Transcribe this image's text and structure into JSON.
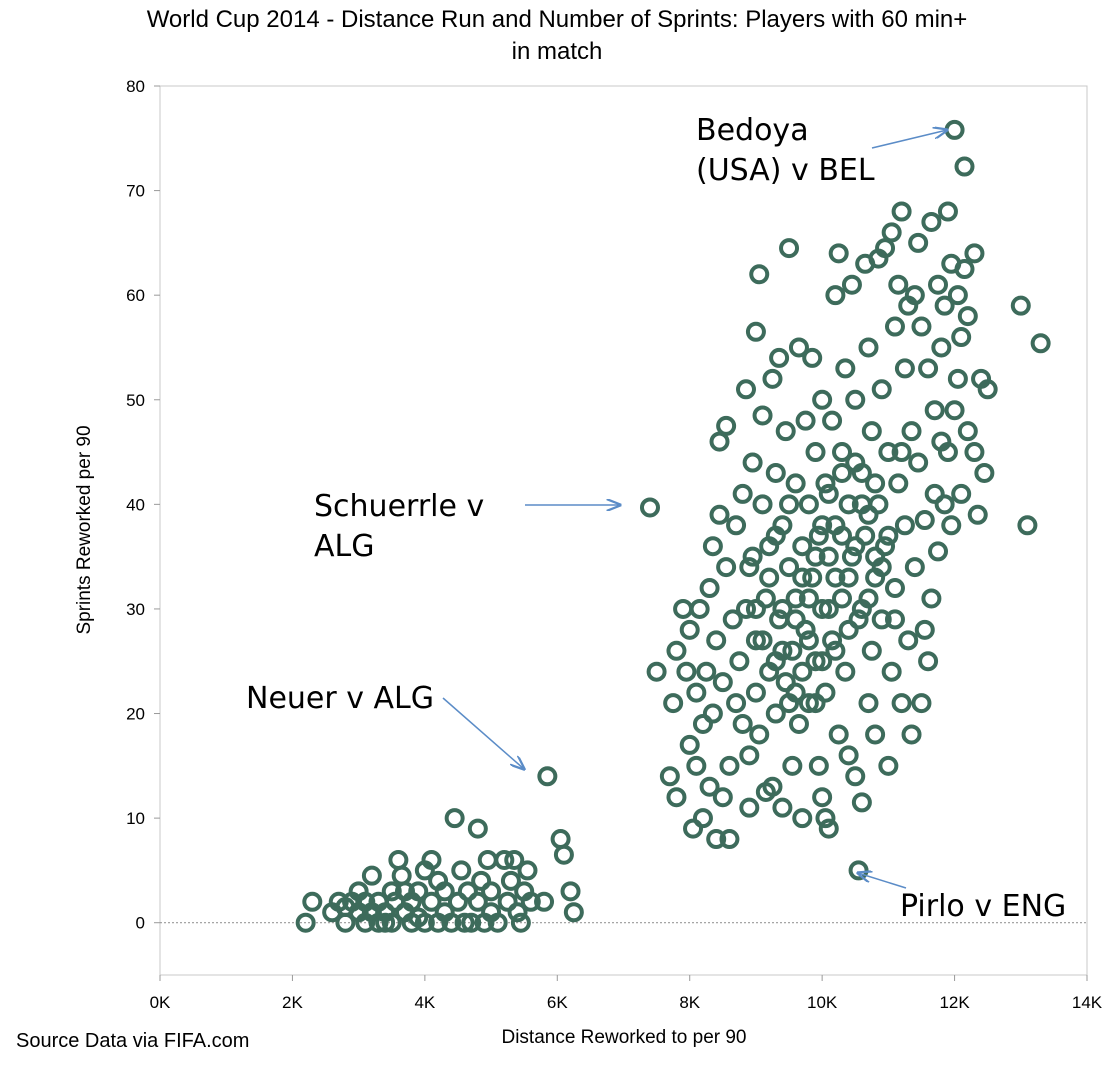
{
  "chart_data": {
    "type": "scatter",
    "title": "World Cup 2014 - Distance Run and Number of Sprints: Players with 60 min+\nin match",
    "xlabel": "Distance Reworked to per 90",
    "ylabel": "Sprints Reworked per 90",
    "xlim": [
      0,
      14000
    ],
    "ylim": [
      -5,
      80
    ],
    "x_ticks": [
      0,
      2000,
      4000,
      6000,
      8000,
      10000,
      12000,
      14000
    ],
    "x_tick_labels": [
      "0K",
      "2K",
      "4K",
      "6K",
      "8K",
      "10K",
      "12K",
      "14K"
    ],
    "y_ticks": [
      0,
      10,
      20,
      30,
      40,
      50,
      60,
      70,
      80
    ],
    "y_tick_labels": [
      "0",
      "10",
      "20",
      "30",
      "40",
      "50",
      "60",
      "70",
      "80"
    ],
    "zero_line": true,
    "grid": false,
    "marker": "open-circle",
    "color": "#3d6b5b",
    "source": "Source Data via FIFA.com",
    "annotations": [
      {
        "text": "Bedoya\n(USA) v BEL",
        "x": 12050,
        "y": 75.8
      },
      {
        "text": "Schuerrle v\nALG",
        "x": 7400,
        "y": 39.7
      },
      {
        "text": "Neuer v ALG",
        "x": 5850,
        "y": 14
      },
      {
        "text": "Pirlo v ENG",
        "x": 10550,
        "y": 5
      }
    ],
    "series": [
      {
        "name": "Players",
        "points": [
          [
            2200,
            0
          ],
          [
            2300,
            2
          ],
          [
            2600,
            1
          ],
          [
            2700,
            2
          ],
          [
            2800,
            0
          ],
          [
            2800,
            1.5
          ],
          [
            2900,
            2
          ],
          [
            3000,
            1
          ],
          [
            3000,
            3
          ],
          [
            3100,
            0
          ],
          [
            3100,
            2
          ],
          [
            3200,
            1
          ],
          [
            3200,
            4.5
          ],
          [
            3300,
            0
          ],
          [
            3300,
            2
          ],
          [
            3400,
            1
          ],
          [
            3400,
            0
          ],
          [
            3500,
            3
          ],
          [
            3500,
            0
          ],
          [
            3550,
            2
          ],
          [
            3600,
            6
          ],
          [
            3650,
            4.5
          ],
          [
            3700,
            1
          ],
          [
            3700,
            3
          ],
          [
            3800,
            0
          ],
          [
            3800,
            2
          ],
          [
            3900,
            0.5
          ],
          [
            3900,
            3
          ],
          [
            4000,
            5
          ],
          [
            4000,
            0
          ],
          [
            4100,
            6
          ],
          [
            4100,
            2
          ],
          [
            4200,
            4
          ],
          [
            4200,
            0
          ],
          [
            4300,
            1
          ],
          [
            4300,
            3
          ],
          [
            4400,
            0
          ],
          [
            4450,
            10
          ],
          [
            4500,
            2
          ],
          [
            4550,
            5
          ],
          [
            4600,
            0
          ],
          [
            4650,
            3
          ],
          [
            4700,
            0
          ],
          [
            4800,
            9
          ],
          [
            4800,
            2
          ],
          [
            4850,
            4
          ],
          [
            4900,
            0
          ],
          [
            4950,
            6
          ],
          [
            5000,
            1
          ],
          [
            5000,
            3
          ],
          [
            5100,
            0
          ],
          [
            5200,
            6
          ],
          [
            5250,
            2
          ],
          [
            5300,
            4
          ],
          [
            5350,
            6
          ],
          [
            5400,
            1
          ],
          [
            5450,
            0
          ],
          [
            5500,
            3
          ],
          [
            5550,
            5
          ],
          [
            5600,
            2
          ],
          [
            5850,
            14
          ],
          [
            5800,
            2
          ],
          [
            6050,
            8
          ],
          [
            6100,
            6.5
          ],
          [
            6200,
            3
          ],
          [
            6250,
            1
          ],
          [
            7400,
            39.7
          ],
          [
            7500,
            24
          ],
          [
            7700,
            14
          ],
          [
            7750,
            21
          ],
          [
            7800,
            12
          ],
          [
            7800,
            26
          ],
          [
            7900,
            30
          ],
          [
            7950,
            24
          ],
          [
            8000,
            17
          ],
          [
            8000,
            28
          ],
          [
            8050,
            9
          ],
          [
            8100,
            15
          ],
          [
            8100,
            22
          ],
          [
            8150,
            30
          ],
          [
            8200,
            10
          ],
          [
            8200,
            19
          ],
          [
            8250,
            24
          ],
          [
            8300,
            32
          ],
          [
            8300,
            13
          ],
          [
            8350,
            36
          ],
          [
            8350,
            20
          ],
          [
            8400,
            27
          ],
          [
            8400,
            8
          ],
          [
            8450,
            39
          ],
          [
            8450,
            46
          ],
          [
            8500,
            12
          ],
          [
            8500,
            23
          ],
          [
            8550,
            34
          ],
          [
            8550,
            47.5
          ],
          [
            8600,
            8
          ],
          [
            8600,
            15
          ],
          [
            8650,
            29
          ],
          [
            8700,
            21
          ],
          [
            8700,
            38
          ],
          [
            8750,
            25
          ],
          [
            8800,
            19
          ],
          [
            8800,
            41
          ],
          [
            8850,
            30
          ],
          [
            8850,
            51
          ],
          [
            8900,
            16
          ],
          [
            8900,
            11
          ],
          [
            8950,
            35
          ],
          [
            8950,
            44
          ],
          [
            9000,
            27
          ],
          [
            9000,
            56.5
          ],
          [
            9000,
            22
          ],
          [
            9050,
            62
          ],
          [
            9050,
            18
          ],
          [
            9100,
            40
          ],
          [
            9100,
            48.5
          ],
          [
            9150,
            12.5
          ],
          [
            9150,
            31
          ],
          [
            9200,
            24
          ],
          [
            9200,
            36
          ],
          [
            9250,
            52
          ],
          [
            9250,
            13
          ],
          [
            9300,
            20
          ],
          [
            9300,
            43
          ],
          [
            9350,
            54
          ],
          [
            9350,
            29
          ],
          [
            9400,
            11
          ],
          [
            9400,
            38
          ],
          [
            9450,
            47
          ],
          [
            9450,
            23
          ],
          [
            9500,
            64.5
          ],
          [
            9500,
            34
          ],
          [
            9550,
            15
          ],
          [
            9550,
            26
          ],
          [
            9600,
            42
          ],
          [
            9600,
            31
          ],
          [
            9650,
            55
          ],
          [
            9650,
            19
          ],
          [
            9700,
            10
          ],
          [
            9700,
            36
          ],
          [
            9750,
            48
          ],
          [
            9750,
            28
          ],
          [
            9800,
            21
          ],
          [
            9800,
            40
          ],
          [
            9850,
            54
          ],
          [
            9850,
            33
          ],
          [
            9900,
            45
          ],
          [
            9900,
            25
          ],
          [
            9950,
            15
          ],
          [
            9950,
            37
          ],
          [
            10000,
            12
          ],
          [
            10000,
            50
          ],
          [
            10000,
            30
          ],
          [
            10050,
            10
          ],
          [
            10050,
            42
          ],
          [
            10050,
            22
          ],
          [
            10100,
            9
          ],
          [
            10100,
            35
          ],
          [
            10150,
            48
          ],
          [
            10150,
            27
          ],
          [
            10200,
            60
          ],
          [
            10200,
            38
          ],
          [
            10250,
            64
          ],
          [
            10250,
            18
          ],
          [
            10300,
            45
          ],
          [
            10300,
            31
          ],
          [
            10350,
            53
          ],
          [
            10350,
            24
          ],
          [
            10400,
            16
          ],
          [
            10400,
            40
          ],
          [
            10450,
            61
          ],
          [
            10450,
            35
          ],
          [
            10500,
            14
          ],
          [
            10500,
            50
          ],
          [
            10550,
            5
          ],
          [
            10550,
            29
          ],
          [
            10600,
            11.5
          ],
          [
            10600,
            43
          ],
          [
            10650,
            63
          ],
          [
            10650,
            37
          ],
          [
            10700,
            21
          ],
          [
            10700,
            55
          ],
          [
            10750,
            26
          ],
          [
            10750,
            47
          ],
          [
            10800,
            18
          ],
          [
            10800,
            33
          ],
          [
            10850,
            63.5
          ],
          [
            10850,
            40
          ],
          [
            10900,
            51
          ],
          [
            10900,
            29
          ],
          [
            10950,
            64.5
          ],
          [
            10950,
            36
          ],
          [
            11000,
            15
          ],
          [
            11000,
            45
          ],
          [
            11050,
            66
          ],
          [
            11050,
            24
          ],
          [
            11100,
            57
          ],
          [
            11100,
            32
          ],
          [
            11150,
            61
          ],
          [
            11150,
            42
          ],
          [
            11200,
            68
          ],
          [
            11200,
            21
          ],
          [
            11250,
            38
          ],
          [
            11250,
            53
          ],
          [
            11300,
            59
          ],
          [
            11300,
            27
          ],
          [
            11350,
            47
          ],
          [
            11350,
            18
          ],
          [
            11400,
            60
          ],
          [
            11400,
            34
          ],
          [
            11450,
            65
          ],
          [
            11450,
            44
          ],
          [
            11500,
            21
          ],
          [
            11500,
            57
          ],
          [
            11550,
            38.5
          ],
          [
            11550,
            28
          ],
          [
            11600,
            53
          ],
          [
            11600,
            25
          ],
          [
            11650,
            67
          ],
          [
            11650,
            31
          ],
          [
            11700,
            41
          ],
          [
            11700,
            49
          ],
          [
            11750,
            61
          ],
          [
            11750,
            35.5
          ],
          [
            11800,
            55
          ],
          [
            11800,
            46
          ],
          [
            11850,
            59
          ],
          [
            11850,
            40
          ],
          [
            11900,
            45
          ],
          [
            11900,
            68
          ],
          [
            11950,
            38
          ],
          [
            11950,
            63
          ],
          [
            12000,
            75.8
          ],
          [
            12000,
            49
          ],
          [
            12050,
            60
          ],
          [
            12050,
            52
          ],
          [
            12100,
            41
          ],
          [
            12100,
            56
          ],
          [
            12150,
            72.3
          ],
          [
            12150,
            62.5
          ],
          [
            12200,
            58
          ],
          [
            12200,
            47
          ],
          [
            12300,
            45
          ],
          [
            12300,
            64
          ],
          [
            12350,
            39
          ],
          [
            12400,
            52
          ],
          [
            12450,
            43
          ],
          [
            12500,
            51
          ],
          [
            13000,
            59
          ],
          [
            13100,
            38
          ],
          [
            13300,
            55.4
          ],
          [
            9300,
            25
          ],
          [
            9400,
            30
          ],
          [
            9500,
            40
          ],
          [
            9600,
            22
          ],
          [
            9700,
            33
          ],
          [
            9800,
            27
          ],
          [
            9900,
            35
          ],
          [
            10000,
            25
          ],
          [
            10100,
            41
          ],
          [
            10200,
            33
          ],
          [
            10300,
            37
          ],
          [
            10400,
            28
          ],
          [
            10500,
            44
          ],
          [
            10600,
            30
          ],
          [
            10700,
            39
          ],
          [
            10800,
            42
          ],
          [
            10900,
            34
          ],
          [
            11000,
            37
          ],
          [
            11100,
            29
          ],
          [
            11200,
            45
          ],
          [
            8900,
            34
          ],
          [
            9000,
            30
          ],
          [
            9100,
            27
          ],
          [
            9200,
            33
          ],
          [
            9300,
            37
          ],
          [
            9400,
            26
          ],
          [
            9500,
            21
          ],
          [
            9600,
            29
          ],
          [
            9700,
            24
          ],
          [
            9800,
            31
          ],
          [
            9900,
            21
          ],
          [
            10000,
            38
          ],
          [
            10100,
            30
          ],
          [
            10200,
            26
          ],
          [
            10300,
            43
          ],
          [
            10400,
            33
          ],
          [
            10500,
            36
          ],
          [
            10600,
            40
          ],
          [
            10700,
            31
          ],
          [
            10800,
            35
          ]
        ]
      }
    ]
  }
}
